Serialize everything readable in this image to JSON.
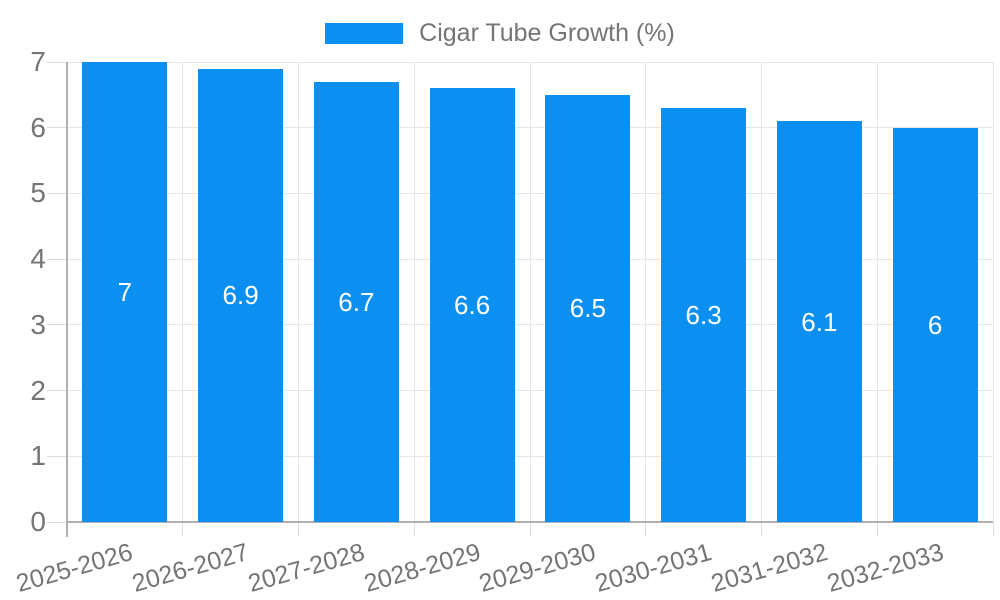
{
  "legend": {
    "items": [
      {
        "label": "Cigar Tube Growth (%)",
        "color": "#0b90f2"
      }
    ]
  },
  "chart_data": {
    "type": "bar",
    "title": "",
    "series_name": "Cigar Tube Growth (%)",
    "categories": [
      "2025-2026",
      "2026-2027",
      "2027-2028",
      "2028-2029",
      "2029-2030",
      "2030-2031",
      "2031-2032",
      "2032-2033"
    ],
    "values": [
      7,
      6.9,
      6.7,
      6.6,
      6.5,
      6.3,
      6.1,
      6
    ],
    "data_labels": [
      "7",
      "6.9",
      "6.7",
      "6.6",
      "6.5",
      "6.3",
      "6.1",
      "6"
    ],
    "xlabel": "",
    "ylabel": "",
    "ylim": [
      0,
      7
    ],
    "yticks": [
      0,
      1,
      2,
      3,
      4,
      5,
      6,
      7
    ],
    "grid": true,
    "legend_position": "top",
    "data_label_position": "center-of-bar",
    "colors": {
      "bar": "#0b90f2",
      "axis_text": "#757575",
      "gridline": "#e6e6e6",
      "axis_line": "#b0b0b0",
      "tick": "#dcdcdc",
      "data_label": "#ffffff",
      "background": "#ffffff"
    }
  }
}
